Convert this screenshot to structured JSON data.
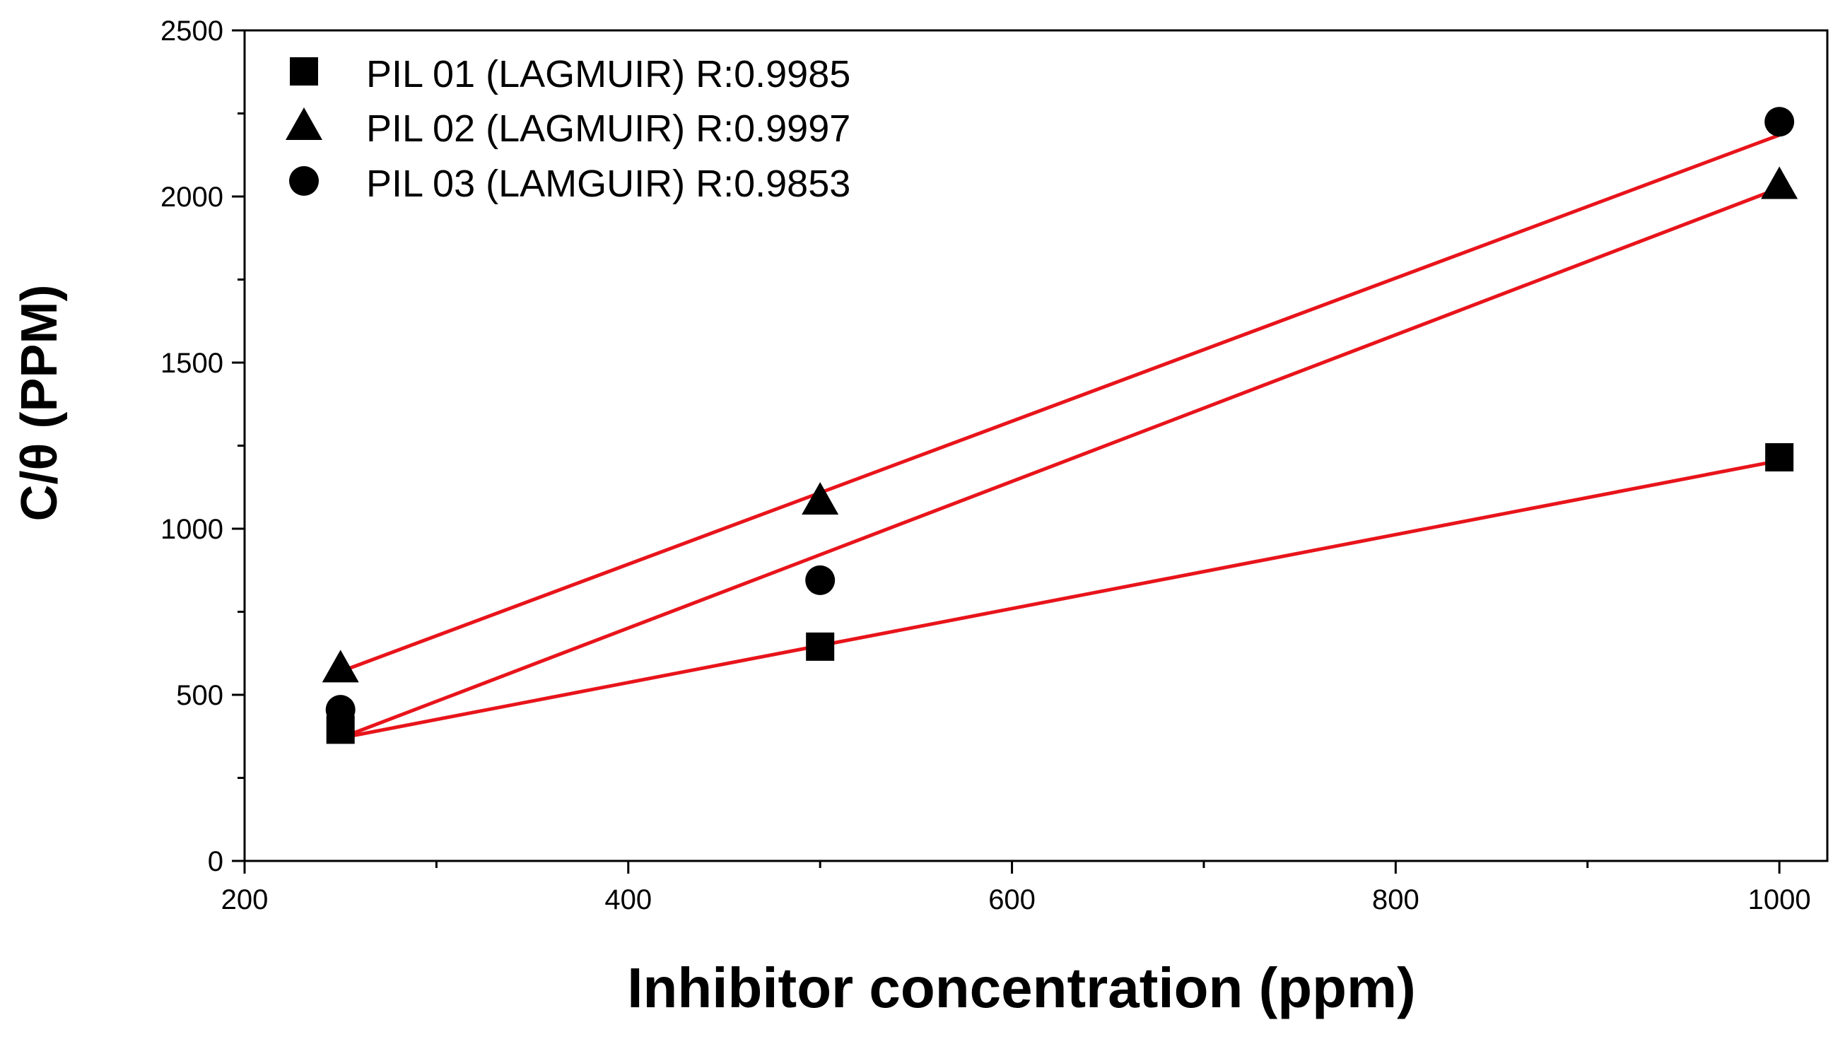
{
  "chart_data": {
    "type": "scatter",
    "title": "",
    "xlabel": "Inhibitor concentration (ppm)",
    "ylabel": "C/θ (PPM)",
    "xlim": [
      200,
      1025
    ],
    "ylim": [
      0,
      2500
    ],
    "xticks": [
      200,
      400,
      600,
      800,
      1000
    ],
    "xticks_minor": [
      300,
      500,
      700,
      900
    ],
    "yticks": [
      0,
      500,
      1000,
      1500,
      2000,
      2500
    ],
    "yticks_minor": [
      250,
      750,
      1250,
      1750,
      2250
    ],
    "xtick_labels": [
      "200",
      "400",
      "600",
      "800",
      "1000"
    ],
    "ytick_labels": [
      "0",
      "500",
      "1000",
      "1500",
      "2000",
      "2500"
    ],
    "legend_position": "top-left",
    "fit_line_color": "#e8141b",
    "marker_color": "#000000",
    "series": [
      {
        "name": "PIL 01 (LAGMUIR) R:0.9985",
        "marker": "square",
        "x": [
          250,
          500,
          1000
        ],
        "y": [
          395,
          645,
          1215
        ],
        "fit": {
          "x": [
            250,
            1000
          ],
          "y": [
            370,
            1205
          ]
        }
      },
      {
        "name": "PIL 02 (LAGMUIR) R:0.9997",
        "marker": "triangle",
        "x": [
          250,
          500,
          1000
        ],
        "y": [
          580,
          1085,
          2035
        ],
        "fit": {
          "x": [
            250,
            1000
          ],
          "y": [
            570,
            2185
          ]
        }
      },
      {
        "name": "PIL 03 (LAMGUIR) R:0.9853",
        "marker": "circle",
        "x": [
          250,
          500,
          1000
        ],
        "y": [
          455,
          845,
          2225
        ],
        "fit": {
          "x": [
            250,
            1000
          ],
          "y": [
            370,
            2025
          ]
        }
      }
    ]
  }
}
